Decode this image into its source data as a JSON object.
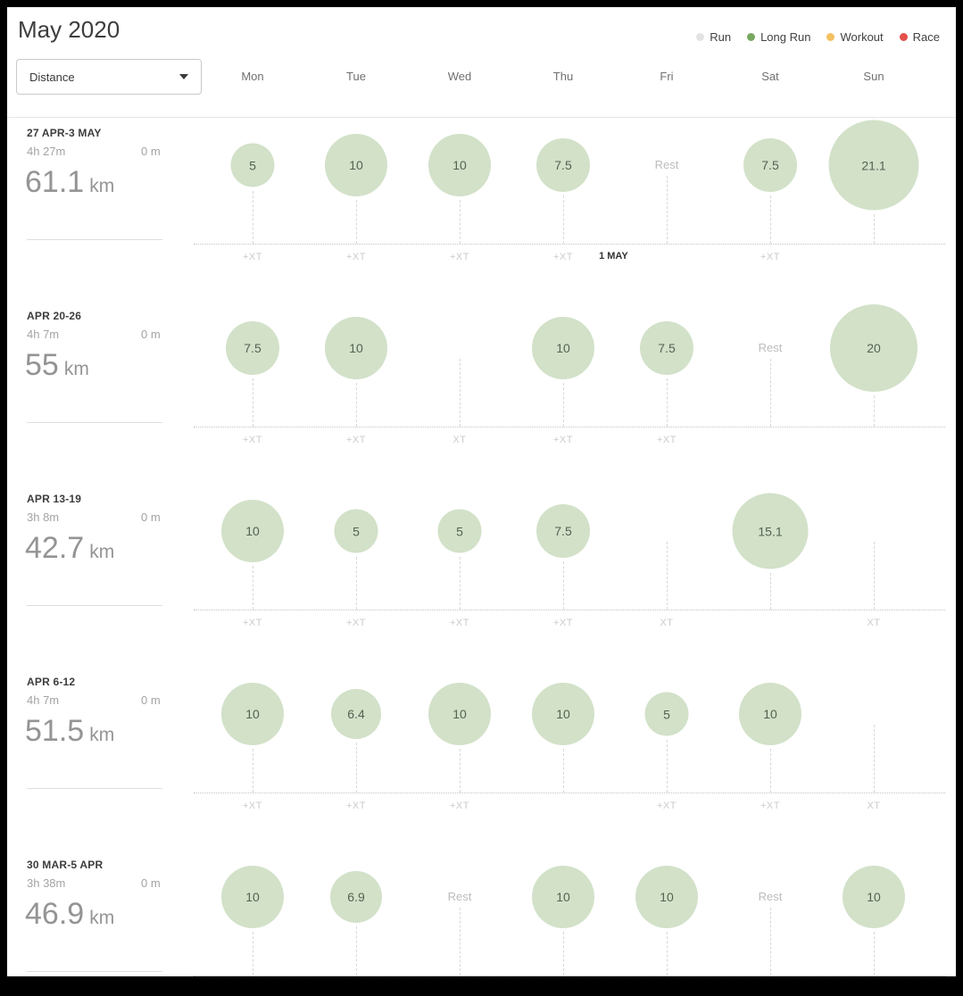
{
  "title": "May 2020",
  "filter": {
    "value": "Distance"
  },
  "legend": [
    {
      "label": "Run",
      "color": "#e3e3e3"
    },
    {
      "label": "Long Run",
      "color": "#79a861"
    },
    {
      "label": "Workout",
      "color": "#f3c05f"
    },
    {
      "label": "Race",
      "color": "#e5504a"
    }
  ],
  "day_headers": [
    "Mon",
    "Tue",
    "Wed",
    "Thu",
    "Fri",
    "Sat",
    "Sun"
  ],
  "colors": {
    "circle_fill": "#d2e1c8",
    "circle_text": "#546353"
  },
  "weeks": [
    {
      "date_range": "27 APR-3 MAY",
      "duration": "4h 27m",
      "elevation": "0 m",
      "distance": "61.1",
      "unit": "km",
      "days": [
        {
          "value": "5",
          "km": 5,
          "sub": "+XT"
        },
        {
          "value": "10",
          "km": 10,
          "sub": "+XT"
        },
        {
          "value": "10",
          "km": 10,
          "sub": "+XT"
        },
        {
          "value": "7.5",
          "km": 7.5,
          "sub": "+XT"
        },
        {
          "rest": true,
          "sub": "",
          "marker": "1 MAY"
        },
        {
          "value": "7.5",
          "km": 7.5,
          "sub": "+XT"
        },
        {
          "value": "21.1",
          "km": 21.1,
          "sub": ""
        }
      ]
    },
    {
      "date_range": "APR 20-26",
      "duration": "4h 7m",
      "elevation": "0 m",
      "distance": "55",
      "unit": "km",
      "days": [
        {
          "value": "7.5",
          "km": 7.5,
          "sub": "+XT"
        },
        {
          "value": "10",
          "km": 10,
          "sub": "+XT"
        },
        {
          "empty": true,
          "sub": "XT"
        },
        {
          "value": "10",
          "km": 10,
          "sub": "+XT"
        },
        {
          "value": "7.5",
          "km": 7.5,
          "sub": "+XT"
        },
        {
          "rest": true,
          "sub": ""
        },
        {
          "value": "20",
          "km": 20,
          "sub": ""
        }
      ]
    },
    {
      "date_range": "APR 13-19",
      "duration": "3h 8m",
      "elevation": "0 m",
      "distance": "42.7",
      "unit": "km",
      "days": [
        {
          "value": "10",
          "km": 10,
          "sub": "+XT"
        },
        {
          "value": "5",
          "km": 5,
          "sub": "+XT"
        },
        {
          "value": "5",
          "km": 5,
          "sub": "+XT"
        },
        {
          "value": "7.5",
          "km": 7.5,
          "sub": "+XT"
        },
        {
          "empty": true,
          "sub": "XT"
        },
        {
          "value": "15.1",
          "km": 15.1,
          "sub": ""
        },
        {
          "empty": true,
          "sub": "XT"
        }
      ]
    },
    {
      "date_range": "APR 6-12",
      "duration": "4h 7m",
      "elevation": "0 m",
      "distance": "51.5",
      "unit": "km",
      "days": [
        {
          "value": "10",
          "km": 10,
          "sub": "+XT"
        },
        {
          "value": "6.4",
          "km": 6.4,
          "sub": "+XT"
        },
        {
          "value": "10",
          "km": 10,
          "sub": "+XT"
        },
        {
          "value": "10",
          "km": 10,
          "sub": ""
        },
        {
          "value": "5",
          "km": 5,
          "sub": "+XT"
        },
        {
          "value": "10",
          "km": 10,
          "sub": "+XT"
        },
        {
          "empty": true,
          "sub": "XT"
        }
      ]
    },
    {
      "date_range": "30 MAR-5 APR",
      "duration": "3h 38m",
      "elevation": "0 m",
      "distance": "46.9",
      "unit": "km",
      "days": [
        {
          "value": "10",
          "km": 10,
          "sub": ""
        },
        {
          "value": "6.9",
          "km": 6.9,
          "sub": ""
        },
        {
          "rest": true,
          "sub": ""
        },
        {
          "value": "10",
          "km": 10,
          "sub": ""
        },
        {
          "value": "10",
          "km": 10,
          "sub": ""
        },
        {
          "rest": true,
          "sub": ""
        },
        {
          "value": "10",
          "km": 10,
          "sub": ""
        }
      ]
    }
  ]
}
